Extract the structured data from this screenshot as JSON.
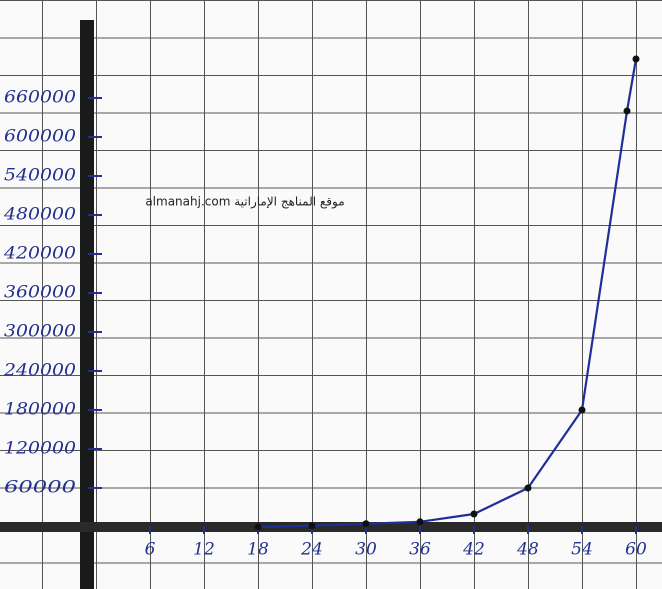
{
  "chart_data": {
    "type": "line",
    "watermark": "almanahj.com موقع المناهج الإماراتية",
    "x": [
      18,
      24,
      30,
      36,
      42,
      48,
      54,
      59,
      60
    ],
    "series": [
      {
        "color": "#1f2f9a",
        "values": [
          0,
          2000,
          5000,
          8000,
          20000,
          60000,
          180000,
          640000,
          720000
        ]
      }
    ],
    "xlim": [
      0,
      62
    ],
    "xticks": [
      6,
      12,
      18,
      24,
      30,
      36,
      42,
      48,
      54,
      60
    ],
    "ylim": [
      0,
      780000
    ],
    "yticks": [
      60000,
      120000,
      180000,
      240000,
      300000,
      360000,
      420000,
      480000,
      540000,
      600000,
      660000
    ]
  }
}
